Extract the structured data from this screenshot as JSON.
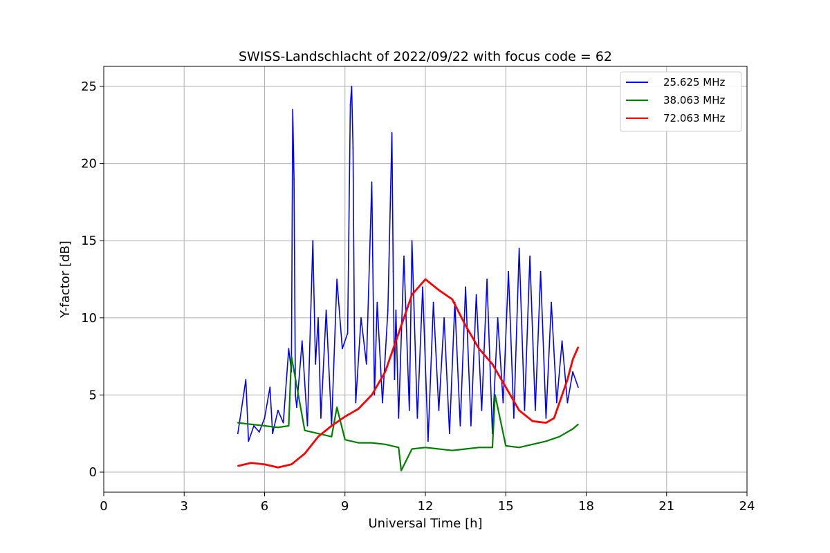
{
  "chart_data": {
    "type": "line",
    "title": "SWISS-Landschlacht of 2022/09/22 with focus code = 62",
    "xlabel": "Universal Time [h]",
    "ylabel": "Y-factor [dB]",
    "xlim": [
      0,
      24
    ],
    "ylim": [
      -1.3,
      26.3
    ],
    "xticks": [
      0,
      3,
      6,
      9,
      12,
      15,
      18,
      21,
      24
    ],
    "yticks": [
      0,
      5,
      10,
      15,
      20,
      25
    ],
    "grid": true,
    "legend_position": "top-right",
    "series": [
      {
        "name": "25.625 MHz",
        "color": "#0000ff",
        "x": [
          5.0,
          5.2,
          5.3,
          5.4,
          5.6,
          5.8,
          6.0,
          6.2,
          6.3,
          6.5,
          6.7,
          6.9,
          7.0,
          7.05,
          7.1,
          7.15,
          7.2,
          7.4,
          7.6,
          7.8,
          7.9,
          8.0,
          8.1,
          8.3,
          8.5,
          8.7,
          8.9,
          9.1,
          9.2,
          9.25,
          9.3,
          9.35,
          9.4,
          9.6,
          9.8,
          10.0,
          10.1,
          10.2,
          10.4,
          10.6,
          10.75,
          10.8,
          10.85,
          10.9,
          11.0,
          11.2,
          11.4,
          11.5,
          11.7,
          11.9,
          12.1,
          12.3,
          12.5,
          12.7,
          12.9,
          13.1,
          13.3,
          13.5,
          13.7,
          13.9,
          14.1,
          14.3,
          14.5,
          14.7,
          14.9,
          15.1,
          15.3,
          15.5,
          15.7,
          15.9,
          16.1,
          16.3,
          16.5,
          16.7,
          16.9,
          17.1,
          17.3,
          17.5,
          17.7
        ],
        "y": [
          2.5,
          4.8,
          6.0,
          2.0,
          3.0,
          2.6,
          3.5,
          5.5,
          2.5,
          4.0,
          3.2,
          8.0,
          6.5,
          23.5,
          19.0,
          5.0,
          4.2,
          8.5,
          3.0,
          15.0,
          7.0,
          10.0,
          3.5,
          10.5,
          3.0,
          12.5,
          8.0,
          9.0,
          23.8,
          25.0,
          21.0,
          9.5,
          4.5,
          10.0,
          7.0,
          18.8,
          5.0,
          11.0,
          4.5,
          10.5,
          22.0,
          13.0,
          6.0,
          10.5,
          3.5,
          14.0,
          4.0,
          15.0,
          3.5,
          12.0,
          2.0,
          11.0,
          4.0,
          10.0,
          2.5,
          11.0,
          3.0,
          12.0,
          3.0,
          11.5,
          4.0,
          12.5,
          2.5,
          10.0,
          4.5,
          13.0,
          3.5,
          14.5,
          4.0,
          14.0,
          4.0,
          13.0,
          3.5,
          11.0,
          4.5,
          8.5,
          4.5,
          6.5,
          5.5
        ]
      },
      {
        "name": "38.063 MHz",
        "color": "#008000",
        "x": [
          5.0,
          5.5,
          6.0,
          6.5,
          6.9,
          7.0,
          7.5,
          8.0,
          8.5,
          8.7,
          9.0,
          9.5,
          10.0,
          10.5,
          11.0,
          11.1,
          11.5,
          12.0,
          12.5,
          13.0,
          13.5,
          14.0,
          14.5,
          14.6,
          15.0,
          15.5,
          16.0,
          16.5,
          17.0,
          17.5,
          17.7
        ],
        "y": [
          3.2,
          3.1,
          3.0,
          2.9,
          3.0,
          7.5,
          2.7,
          2.5,
          2.3,
          4.2,
          2.1,
          1.9,
          1.9,
          1.8,
          1.6,
          0.1,
          1.5,
          1.6,
          1.5,
          1.4,
          1.5,
          1.6,
          1.6,
          5.0,
          1.7,
          1.6,
          1.8,
          2.0,
          2.3,
          2.8,
          3.1
        ]
      },
      {
        "name": "72.063 MHz",
        "color": "#ff0000",
        "x": [
          5.0,
          5.5,
          6.0,
          6.5,
          7.0,
          7.5,
          8.0,
          8.5,
          9.0,
          9.5,
          10.0,
          10.5,
          11.0,
          11.5,
          12.0,
          12.5,
          13.0,
          13.5,
          14.0,
          14.5,
          15.0,
          15.5,
          16.0,
          16.5,
          16.8,
          17.0,
          17.3,
          17.5,
          17.7
        ],
        "y": [
          0.4,
          0.6,
          0.5,
          0.3,
          0.5,
          1.2,
          2.3,
          3.0,
          3.6,
          4.1,
          5.0,
          6.5,
          9.0,
          11.5,
          12.5,
          11.8,
          11.2,
          9.5,
          8.0,
          7.0,
          5.5,
          4.0,
          3.3,
          3.2,
          3.5,
          4.5,
          6.0,
          7.3,
          8.1
        ]
      }
    ]
  }
}
